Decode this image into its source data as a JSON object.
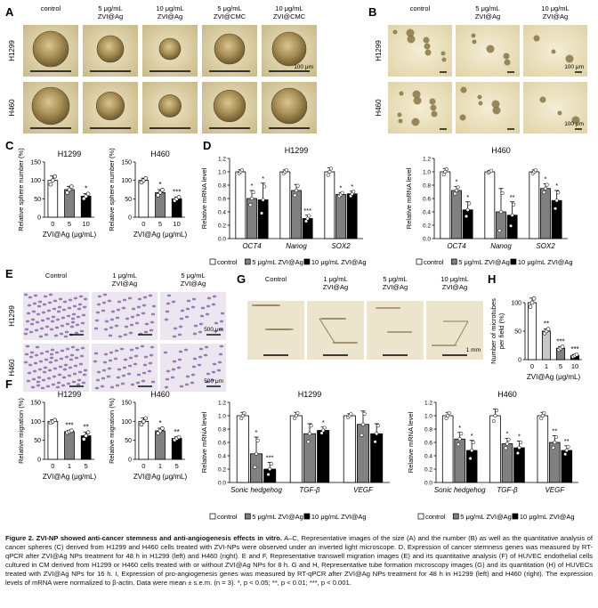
{
  "panels": {
    "A": {
      "letter": "A",
      "cols": [
        "control",
        "5 μg/mL\nZVI@Ag",
        "10 μg/mL\nZVI@Ag",
        "5 μg/mL\nZVI@CMC",
        "10 μg/mL\nZVI@CMC"
      ],
      "rows": [
        "H1299",
        "H460"
      ],
      "scale": "100 μm"
    },
    "B": {
      "letter": "B",
      "cols": [
        "control",
        "5 μg/mL\nZVI@Ag",
        "10 μg/mL\nZVI@Ag"
      ],
      "rows": [
        "H1299",
        "H460"
      ],
      "scale": "100 μm"
    },
    "C": {
      "letter": "C"
    },
    "D": {
      "letter": "D"
    },
    "E": {
      "letter": "E",
      "cols": [
        "Control",
        "1 μg/mL\nZVI@Ag",
        "5 μg/mL\nZVI@Ag"
      ],
      "rows": [
        "H1299",
        "H460"
      ],
      "scale": "500 μm"
    },
    "F": {
      "letter": "F"
    },
    "G": {
      "letter": "G",
      "cols": [
        "Control",
        "1 μg/mL\nZVI@Ag",
        "5 μg/mL\nZVI@Ag",
        "10 μg/mL\nZVI@Ag"
      ],
      "scale": "1 mm"
    },
    "H": {
      "letter": "H"
    },
    "I": {
      "letter": "I"
    }
  },
  "chart_data": [
    {
      "id": "C-H1299",
      "type": "bar",
      "title": "H1299",
      "ylabel": "Relative sphere number (%)",
      "xlabel": "ZVI@Ag (μg/mL)",
      "categories": [
        "0",
        "5",
        "10"
      ],
      "values": [
        100,
        75,
        57
      ],
      "errors": [
        12,
        9,
        7
      ],
      "ylim": [
        0,
        150
      ],
      "yticks": [
        0,
        50,
        100,
        150
      ],
      "sig": [
        "",
        "",
        "*"
      ],
      "colors": [
        "#ffffff",
        "#808080",
        "#000000"
      ]
    },
    {
      "id": "C-H460",
      "type": "bar",
      "title": "H460",
      "ylabel": "Relative sphere number (%)",
      "xlabel": "ZVI@Ag (μg/mL)",
      "categories": [
        "0",
        "5",
        "10"
      ],
      "values": [
        100,
        67,
        50
      ],
      "errors": [
        6,
        8,
        5
      ],
      "ylim": [
        0,
        150
      ],
      "yticks": [
        0,
        50,
        100,
        150
      ],
      "sig": [
        "",
        "*",
        "***"
      ],
      "colors": [
        "#ffffff",
        "#808080",
        "#000000"
      ]
    },
    {
      "id": "D-H1299",
      "type": "bar",
      "title": "H1299",
      "ylabel": "Relative mRNA level",
      "categories": [
        "OCT4",
        "Nanog",
        "SOX2"
      ],
      "series": [
        {
          "name": "control",
          "values": [
            1.0,
            1.0,
            1.0
          ],
          "errors": [
            0.03,
            0.03,
            0.06
          ]
        },
        {
          "name": "5 μg/mL ZVI@Ag",
          "values": [
            0.6,
            0.72,
            0.66
          ],
          "errors": [
            0.12,
            0.09,
            0.03
          ]
        },
        {
          "name": "10 μg/mL ZVI@Ag",
          "values": [
            0.58,
            0.3,
            0.67
          ],
          "errors": [
            0.25,
            0.05,
            0.04
          ]
        }
      ],
      "sig": [
        [
          "",
          "*",
          "*"
        ],
        [
          "",
          "",
          "***"
        ],
        [
          "",
          "*",
          "*"
        ]
      ],
      "ylim": [
        0,
        1.2
      ],
      "yticks": [
        0,
        0.2,
        0.4,
        0.6,
        0.8,
        1.0,
        1.2
      ]
    },
    {
      "id": "D-H460",
      "type": "bar",
      "title": "H460",
      "ylabel": "Relative mRNA level",
      "categories": [
        "OCT4",
        "Nanog",
        "SOX2"
      ],
      "series": [
        {
          "name": "control",
          "values": [
            1.0,
            1.0,
            1.0
          ],
          "errors": [
            0.05,
            0.02,
            0.03
          ]
        },
        {
          "name": "5 μg/mL ZVI@Ag",
          "values": [
            0.72,
            0.4,
            0.75
          ],
          "errors": [
            0.06,
            0.35,
            0.07
          ]
        },
        {
          "name": "10 μg/mL ZVI@Ag",
          "values": [
            0.43,
            0.35,
            0.57
          ],
          "errors": [
            0.12,
            0.2,
            0.15
          ]
        }
      ],
      "sig": [
        [
          "",
          "*",
          "*"
        ],
        [
          "",
          "",
          "**"
        ],
        [
          "",
          "*",
          "*"
        ]
      ],
      "ylim": [
        0,
        1.2
      ],
      "yticks": [
        0,
        0.2,
        0.4,
        0.6,
        0.8,
        1.0,
        1.2
      ]
    },
    {
      "id": "F-H1299",
      "type": "bar",
      "title": "H1299",
      "ylabel": "Relative migration (%)",
      "xlabel": "ZVI@Ag (μg/mL)",
      "categories": [
        "0",
        "1",
        "5"
      ],
      "values": [
        100,
        73,
        62
      ],
      "errors": [
        4,
        3,
        10
      ],
      "ylim": [
        0,
        150
      ],
      "yticks": [
        0,
        50,
        100,
        150
      ],
      "sig": [
        "",
        "***",
        "**"
      ],
      "colors": [
        "#ffffff",
        "#808080",
        "#000000"
      ]
    },
    {
      "id": "F-H460",
      "type": "bar",
      "title": "H460",
      "ylabel": "Relative migration (%)",
      "xlabel": "ZVI@Ag (μg/mL)",
      "categories": [
        "0",
        "1",
        "5"
      ],
      "values": [
        100,
        75,
        55
      ],
      "errors": [
        9,
        7,
        4
      ],
      "ylim": [
        0,
        150
      ],
      "yticks": [
        0,
        50,
        100,
        150
      ],
      "sig": [
        "",
        "*",
        "**"
      ],
      "colors": [
        "#ffffff",
        "#808080",
        "#000000"
      ]
    },
    {
      "id": "H",
      "type": "bar",
      "ylabel": "Number of microtubes\nper field (%)",
      "xlabel": "ZVI@Ag (μg/mL)",
      "categories": [
        "0",
        "1",
        "5",
        "10"
      ],
      "values": [
        100,
        50,
        20,
        7
      ],
      "errors": [
        8,
        4,
        3,
        2
      ],
      "ylim": [
        0,
        100
      ],
      "yticks": [
        0,
        50,
        100
      ],
      "sig": [
        "",
        "**",
        "***",
        "***"
      ],
      "colors": [
        "#ffffff",
        "#c8c8c8",
        "#808080",
        "#000000"
      ]
    },
    {
      "id": "I-H1299",
      "type": "bar",
      "title": "H1299",
      "ylabel": "Relative mRNA level",
      "categories": [
        "Sonic hedgehog",
        "TGF-β",
        "VEGF"
      ],
      "series": [
        {
          "name": "control",
          "values": [
            1.0,
            1.0,
            1.0
          ],
          "errors": [
            0.05,
            0.05,
            0.03
          ]
        },
        {
          "name": "5 μg/mL ZVI@Ag",
          "values": [
            0.43,
            0.73,
            0.87
          ],
          "errors": [
            0.25,
            0.15,
            0.2
          ]
        },
        {
          "name": "10 μg/mL ZVI@Ag",
          "values": [
            0.2,
            0.78,
            0.73
          ],
          "errors": [
            0.1,
            0.05,
            0.15
          ]
        }
      ],
      "sig": [
        [
          "",
          "*",
          "***"
        ],
        [
          "",
          "",
          "*"
        ],
        [
          "",
          "",
          ""
        ]
      ],
      "ylim": [
        0,
        1.2
      ],
      "yticks": [
        0,
        0.2,
        0.4,
        0.6,
        0.8,
        1.0,
        1.2
      ]
    },
    {
      "id": "I-H460",
      "type": "bar",
      "title": "H460",
      "ylabel": "Relative mRNA level",
      "categories": [
        "Sonic hedgehog",
        "TGF-β",
        "VEGF"
      ],
      "series": [
        {
          "name": "control",
          "values": [
            1.0,
            1.0,
            1.0
          ],
          "errors": [
            0.05,
            0.1,
            0.05
          ]
        },
        {
          "name": "5 μg/mL ZVI@Ag",
          "values": [
            0.65,
            0.58,
            0.6
          ],
          "errors": [
            0.1,
            0.08,
            0.1
          ]
        },
        {
          "name": "10 μg/mL ZVI@Ag",
          "values": [
            0.48,
            0.52,
            0.48
          ],
          "errors": [
            0.15,
            0.1,
            0.07
          ]
        }
      ],
      "sig": [
        [
          "",
          "*",
          "*"
        ],
        [
          "",
          "*",
          "*"
        ],
        [
          "",
          "**",
          "**"
        ]
      ],
      "ylim": [
        0,
        1.2
      ],
      "yticks": [
        0,
        0.2,
        0.4,
        0.6,
        0.8,
        1.0,
        1.2
      ]
    }
  ],
  "legend": {
    "labels": [
      "control",
      "5 μg/mL ZVI@Ag",
      "10 μg/mL ZVI@Ag"
    ],
    "colors": [
      "#ffffff",
      "#808080",
      "#000000"
    ]
  },
  "caption": {
    "figure_label": "Figure 2.",
    "title": "ZVI-NP showed anti-cancer stemness and anti-angiogenesis effects in vitro.",
    "body": "A–C, Representative images of the size (A) and the number (B) as well as the quantitative analysis of cancer spheres (C) derived from H1299 and H460 cells treated with ZVI-NPs were observed under an inverted light microscope. D, Expression of cancer stemness genes was measured by RT-qPCR after ZVI@Ag NPs treatment for 48 h in H1299 (left) and H460 (right). E and F, Representative transwell migration images (E) and its quantitative analysis (F) of HUVEC endothelial cells cultured in CM derived from H1299 or H460 cells treated with or without ZVI@Ag NPs for 8 h. G and H, Representative tube formation microscopy images (G) and its quantitation (H) of HUVECs treated with ZVI@Ag NPs for 16 h. I, Expression of pro-angiogenesis genes was measured by RT-qPCR after ZVI@Ag NPs treatment for 48 h in H1299 (left) and H460 (right). The expression levels of mRNA were normalized to β-actin. Data were mean ± s.e.m. (n = 3). *, p < 0.05; **, p < 0.01; ***, p < 0.001."
  }
}
